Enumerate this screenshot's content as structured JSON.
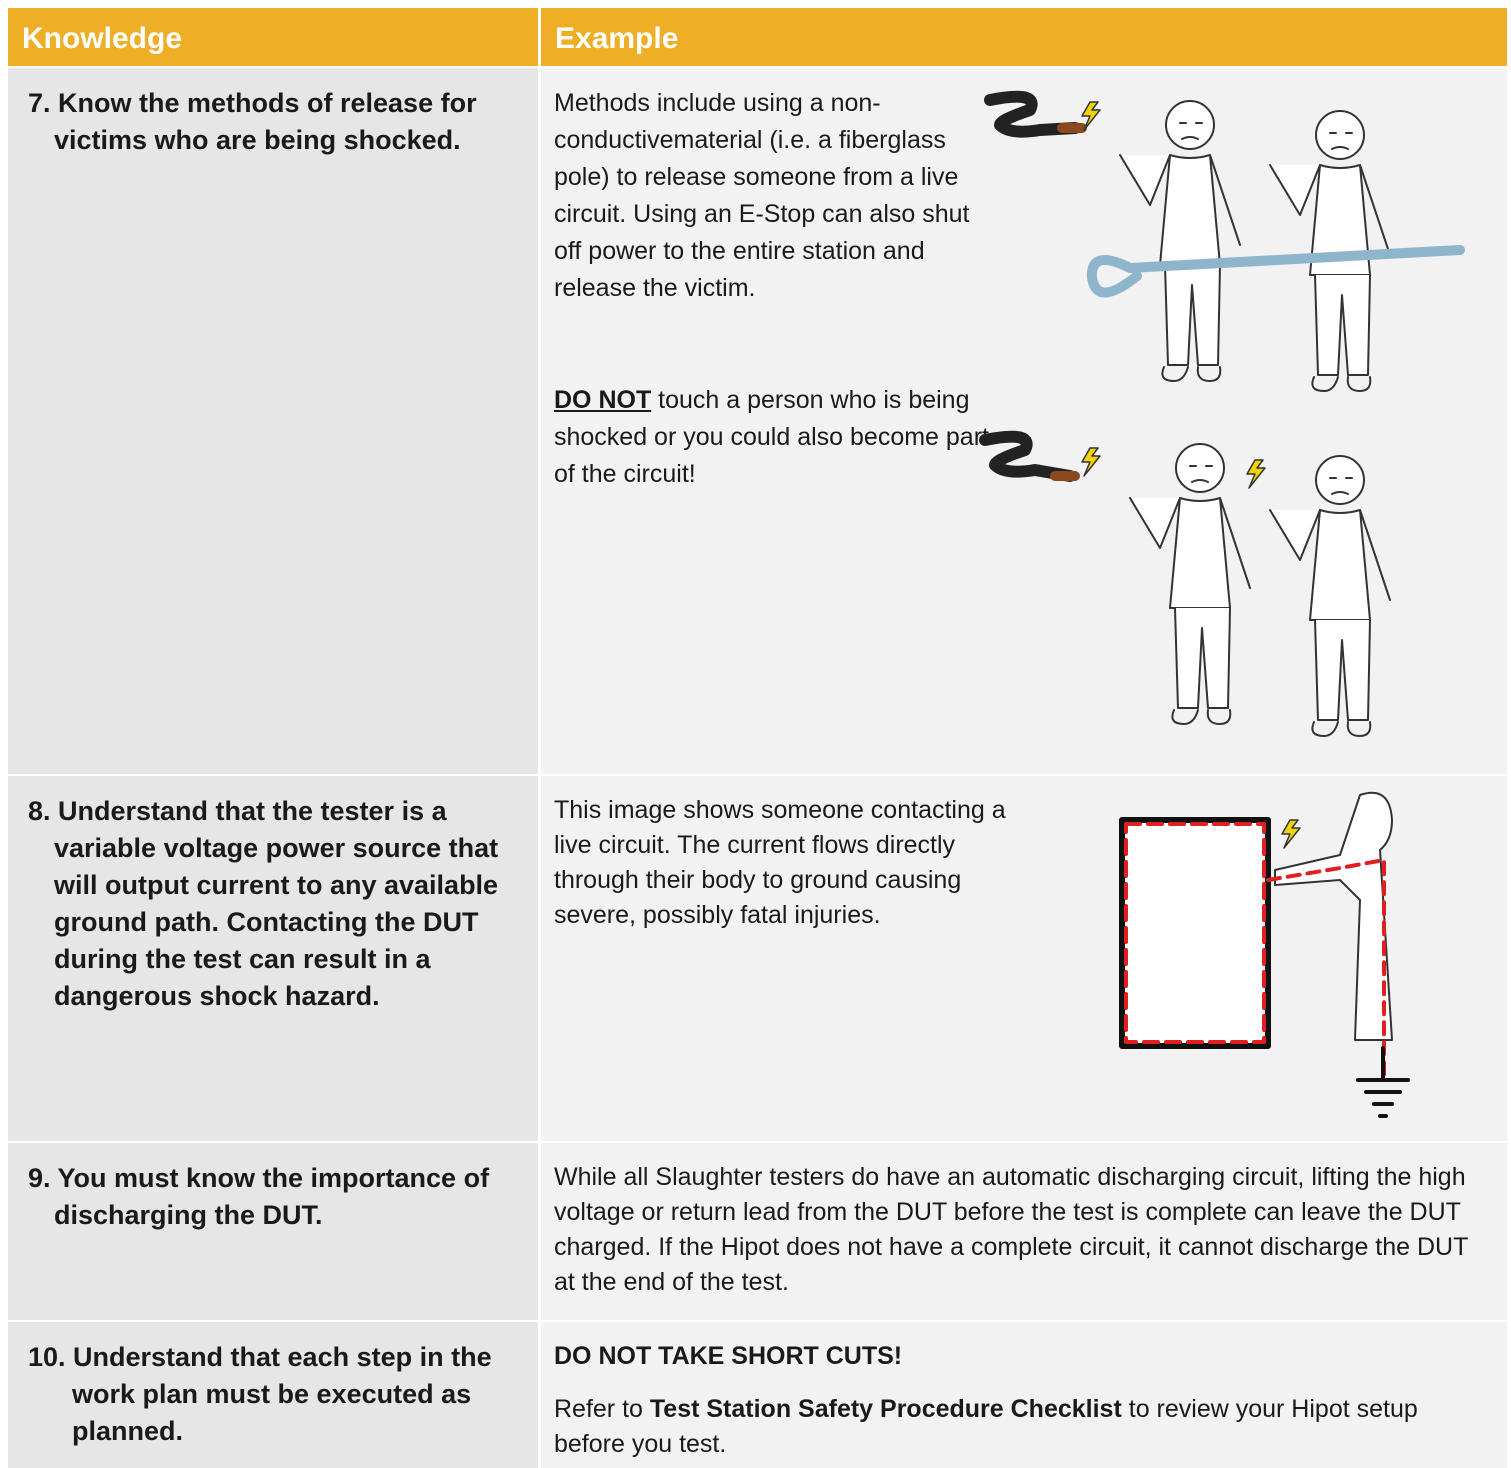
{
  "header": {
    "knowledge": "Knowledge",
    "example": "Example"
  },
  "rows": [
    {
      "knowledge": "7. Know the methods of release for victims who are being shocked.",
      "example": {
        "paragraph": "Methods include using a non-conductivematerial (i.e. a fiberglass pole) to release someone from a live circuit. Using an E-Stop can also shut off power to the entire station and release the victim.",
        "warning": {
          "emphasis": "DO NOT",
          "text": "touch a person who is being shocked or you could also become part of the circuit!"
        }
      }
    },
    {
      "knowledge": "8. Understand that the tester is a variable voltage power source that will output current to any available ground path. Contacting the DUT during the test can result in a dangerous shock hazard.",
      "example": {
        "paragraph": "This image shows someone contacting a live circuit. The current flows directly through their body to ground causing severe, possibly fatal injuries."
      }
    },
    {
      "knowledge": "9. You must know the importance of discharging the DUT.",
      "example": {
        "paragraph": "While all Slaughter testers do have an automatic discharging circuit, lifting the high voltage or return lead from the DUT before the test is complete can leave the DUT charged. If the Hipot does not have a complete circuit, it cannot discharge the DUT at the end of the test."
      }
    },
    {
      "knowledge": "10. Understand that each step in the work plan must be executed as planned.",
      "example": {
        "heading": "DO NOT TAKE SHORT CUTS!",
        "reference": {
          "before": "Refer to",
          "document": "Test Station Safety Procedure Checklist",
          "after": "to review your Hipot setup before you test."
        }
      }
    }
  ]
}
